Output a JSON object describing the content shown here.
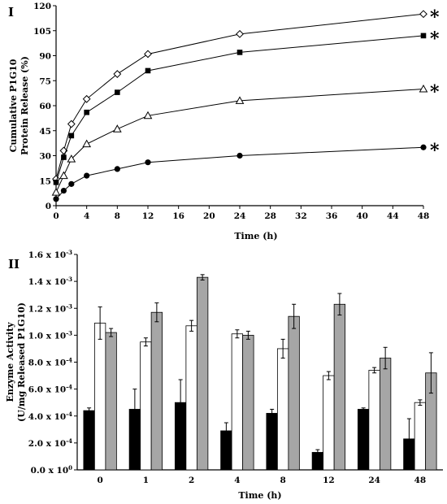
{
  "chart_data": [
    {
      "panel_label": "I",
      "type": "line",
      "xlabel": "Time (h)",
      "ylabel_lines": [
        "Cumulative P1G10",
        "Protein Release (%)"
      ],
      "xlim": [
        0,
        48
      ],
      "ylim": [
        0,
        120
      ],
      "xticks": [
        0,
        4,
        8,
        12,
        16,
        20,
        24,
        28,
        32,
        36,
        40,
        44,
        48
      ],
      "yticks": [
        0,
        15,
        30,
        45,
        60,
        75,
        90,
        105,
        120
      ],
      "annotations": [
        "*",
        "*",
        "*",
        "*"
      ],
      "series": [
        {
          "marker": "open-diamond",
          "x": [
            0,
            1,
            2,
            4,
            8,
            12,
            24,
            48
          ],
          "y": [
            16,
            33,
            49,
            64,
            79,
            91,
            103,
            115
          ]
        },
        {
          "marker": "filled-square",
          "x": [
            0,
            1,
            2,
            4,
            8,
            12,
            24,
            48
          ],
          "y": [
            14,
            29,
            42,
            56,
            68,
            81,
            92,
            102
          ]
        },
        {
          "marker": "open-triangle",
          "x": [
            0,
            1,
            2,
            4,
            8,
            12,
            24,
            48
          ],
          "y": [
            8,
            18,
            28,
            37,
            46,
            54,
            63,
            70
          ]
        },
        {
          "marker": "filled-circle",
          "x": [
            0,
            1,
            2,
            4,
            8,
            12,
            24,
            48
          ],
          "y": [
            4,
            9,
            13,
            18,
            22,
            26,
            30,
            35
          ]
        }
      ]
    },
    {
      "panel_label": "II",
      "type": "bar",
      "xlabel": "Time (h)",
      "ylabel_lines": [
        "Enzyme Activity",
        "(U/mg Released P1G10)"
      ],
      "categories": [
        "0",
        "1",
        "2",
        "4",
        "8",
        "12",
        "24",
        "48"
      ],
      "ylim": [
        0,
        0.0016
      ],
      "ytick_values": [
        0,
        0.0002,
        0.0004,
        0.0006,
        0.0008,
        0.001,
        0.0012,
        0.0014,
        0.0016
      ],
      "ytick_labels": [
        {
          "m": "0.0 x 10",
          "e": "0"
        },
        {
          "m": "2.0 x 10",
          "e": "-4"
        },
        {
          "m": "4.0 x 10",
          "e": "-4"
        },
        {
          "m": "6.0 x 10",
          "e": "-4"
        },
        {
          "m": "8.0 x 10",
          "e": "-4"
        },
        {
          "m": "1.0 x 10",
          "e": "-3"
        },
        {
          "m": "1.2 x 10",
          "e": "-3"
        },
        {
          "m": "1.4 x 10",
          "e": "-3"
        },
        {
          "m": "1.6 x 10",
          "e": "-3"
        }
      ],
      "series": [
        {
          "color": "#000000",
          "values": [
            0.00044,
            0.00045,
            0.0005,
            0.00029,
            0.00042,
            0.00013,
            0.00045,
            0.00023
          ],
          "errors": [
            2e-05,
            0.00015,
            0.00017,
            6e-05,
            3e-05,
            2e-05,
            1e-05,
            0.00015
          ]
        },
        {
          "color": "#ffffff",
          "values": [
            0.00109,
            0.00095,
            0.00107,
            0.00101,
            0.0009,
            0.0007,
            0.00074,
            0.0005
          ],
          "errors": [
            0.00012,
            3e-05,
            4e-05,
            3e-05,
            7e-05,
            3e-05,
            2e-05,
            2e-05
          ]
        },
        {
          "color": "#a6a6a6",
          "values": [
            0.00102,
            0.00117,
            0.00143,
            0.001,
            0.00114,
            0.00123,
            0.00083,
            0.00072
          ],
          "errors": [
            3e-05,
            7e-05,
            2e-05,
            3e-05,
            9e-05,
            8e-05,
            8e-05,
            0.00015
          ]
        }
      ]
    }
  ]
}
